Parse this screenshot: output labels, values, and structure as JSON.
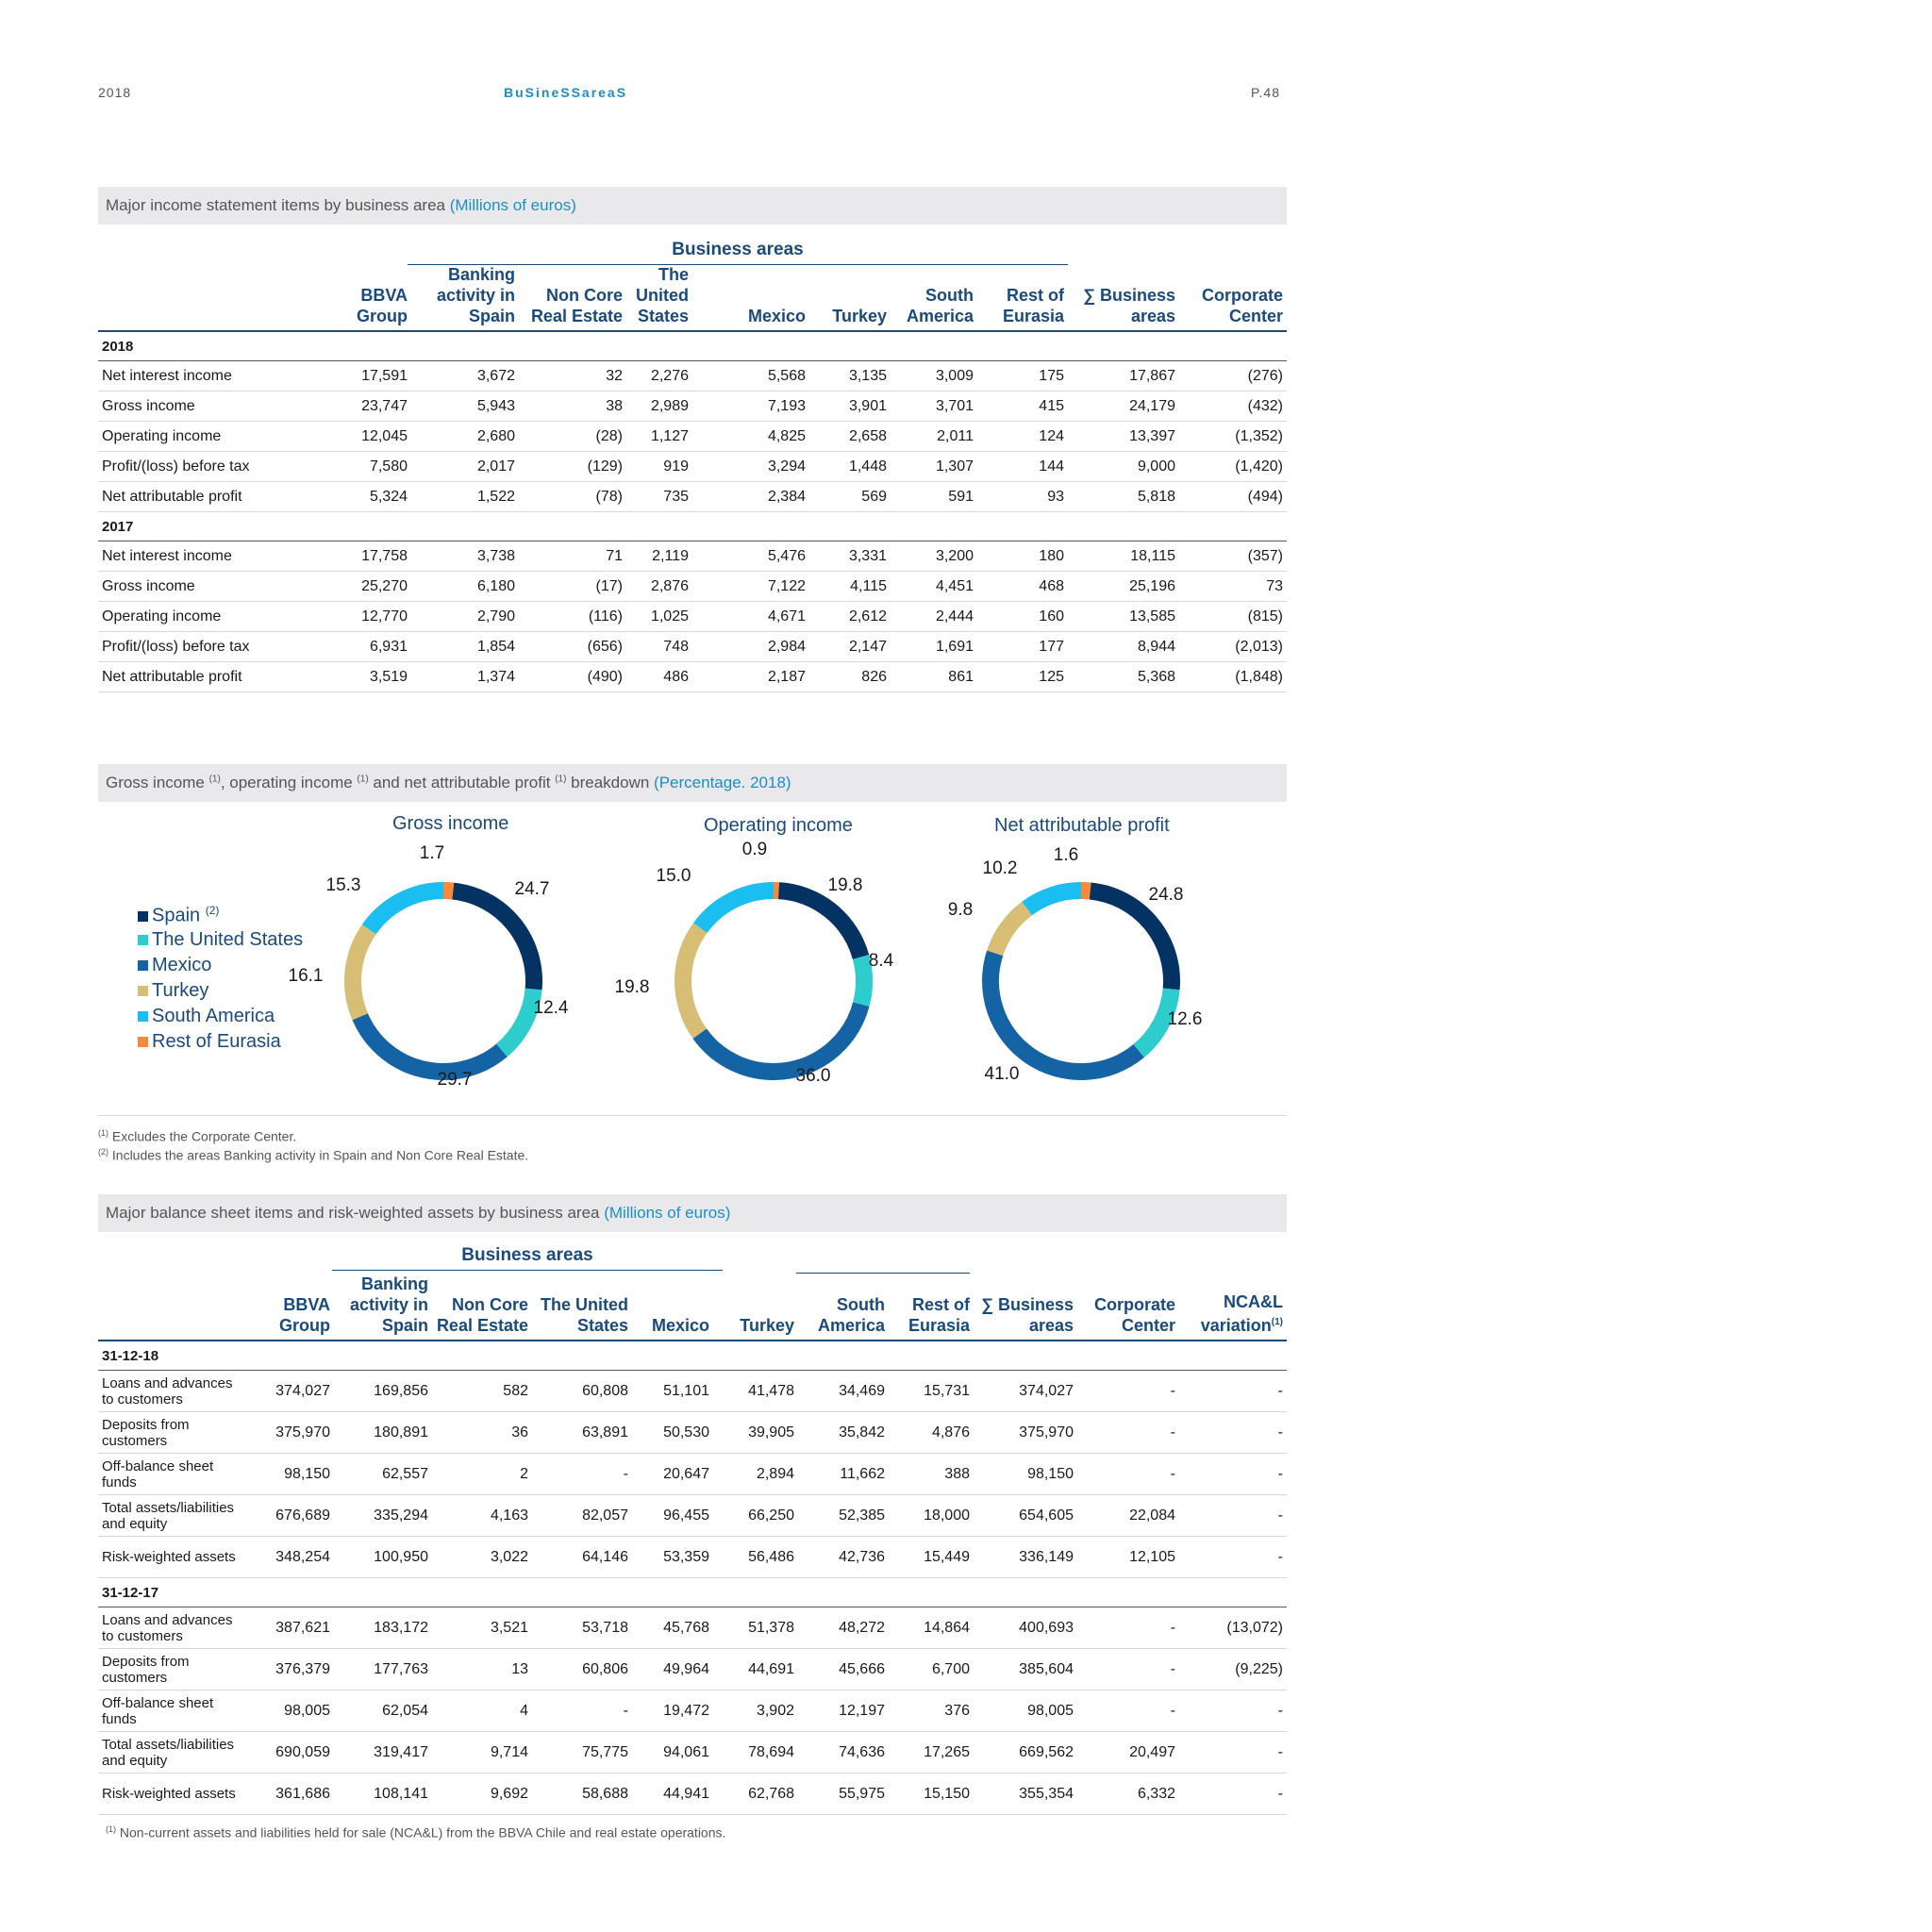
{
  "header": {
    "year": "2018",
    "section": "BuSineSSareaS",
    "page": "P.48"
  },
  "income": {
    "title": "Major income statement items by business area ",
    "unit": "(Millions of euros)",
    "group": "Business areas",
    "columns": [
      "BBVA Group",
      "Banking activity in Spain",
      "Non Core Real Estate",
      "The United States",
      "Mexico",
      "Turkey",
      "South America",
      "Rest of Eurasia",
      "∑ Business areas",
      "Corporate Center"
    ],
    "sections": [
      {
        "year": "2018",
        "rows": [
          {
            "label": "Net interest income",
            "values": [
              "17,591",
              "3,672",
              "32",
              "2,276",
              "5,568",
              "3,135",
              "3,009",
              "175",
              "17,867",
              "(276)"
            ]
          },
          {
            "label": "Gross income",
            "values": [
              "23,747",
              "5,943",
              "38",
              "2,989",
              "7,193",
              "3,901",
              "3,701",
              "415",
              "24,179",
              "(432)"
            ]
          },
          {
            "label": "Operating income",
            "values": [
              "12,045",
              "2,680",
              "(28)",
              "1,127",
              "4,825",
              "2,658",
              "2,011",
              "124",
              "13,397",
              "(1,352)"
            ]
          },
          {
            "label": "Profit/(loss) before tax",
            "values": [
              "7,580",
              "2,017",
              "(129)",
              "919",
              "3,294",
              "1,448",
              "1,307",
              "144",
              "9,000",
              "(1,420)"
            ]
          },
          {
            "label": "Net attributable profit",
            "values": [
              "5,324",
              "1,522",
              "(78)",
              "735",
              "2,384",
              "569",
              "591",
              "93",
              "5,818",
              "(494)"
            ]
          }
        ]
      },
      {
        "year": "2017",
        "rows": [
          {
            "label": "Net interest income",
            "values": [
              "17,758",
              "3,738",
              "71",
              "2,119",
              "5,476",
              "3,331",
              "3,200",
              "180",
              "18,115",
              "(357)"
            ]
          },
          {
            "label": "Gross income",
            "values": [
              "25,270",
              "6,180",
              "(17)",
              "2,876",
              "7,122",
              "4,115",
              "4,451",
              "468",
              "25,196",
              "73"
            ]
          },
          {
            "label": "Operating income",
            "values": [
              "12,770",
              "2,790",
              "(116)",
              "1,025",
              "4,671",
              "2,612",
              "2,444",
              "160",
              "13,585",
              "(815)"
            ]
          },
          {
            "label": "Profit/(loss) before tax",
            "values": [
              "6,931",
              "1,854",
              "(656)",
              "748",
              "2,984",
              "2,147",
              "1,691",
              "177",
              "8,944",
              "(2,013)"
            ]
          },
          {
            "label": "Net attributable profit",
            "values": [
              "3,519",
              "1,374",
              "(490)",
              "486",
              "2,187",
              "826",
              "861",
              "125",
              "5,368",
              "(1,848)"
            ]
          }
        ]
      }
    ]
  },
  "breakdown": {
    "title_parts": [
      "Gross income ",
      "(1)",
      ", operating income ",
      "(1)",
      " and net attributable profit ",
      "(1)",
      " breakdown "
    ],
    "unit": "(Percentage. 2018)",
    "legend": [
      {
        "label": "Spain ",
        "sup": "(2)",
        "color": "#043263"
      },
      {
        "label": "The United States",
        "color": "#2dcccd"
      },
      {
        "label": "Mexico",
        "color": "#1464a5"
      },
      {
        "label": "Turkey",
        "color": "#d8be75"
      },
      {
        "label": "South America",
        "color": "#1bbef0"
      },
      {
        "label": "Rest of Eurasia",
        "color": "#f7893b"
      }
    ],
    "notes": [
      {
        "sup": "(1)",
        "text": " Excludes the Corporate Center."
      },
      {
        "sup": "(2)",
        "text": " Includes the areas Banking activity in Spain and Non Core Real Estate."
      }
    ]
  },
  "chart_data": [
    {
      "type": "pie",
      "title": "Gross income",
      "categories": [
        "Spain",
        "The United States",
        "Mexico",
        "Turkey",
        "South America",
        "Rest of Eurasia"
      ],
      "values": [
        24.7,
        12.4,
        29.7,
        16.1,
        15.3,
        1.7
      ],
      "labels": [
        "24.7",
        "12.4",
        "29.7",
        "16.1",
        "15.3",
        "1.7"
      ]
    },
    {
      "type": "pie",
      "title": "Operating income",
      "categories": [
        "Spain",
        "The United States",
        "Mexico",
        "Turkey",
        "South America",
        "Rest of Eurasia"
      ],
      "values": [
        19.8,
        8.4,
        36.0,
        19.8,
        15.0,
        0.9
      ],
      "labels": [
        "19.8",
        "8.4",
        "36.0",
        "19.8",
        "15.0",
        "0.9"
      ]
    },
    {
      "type": "pie",
      "title": "Net attributable profit",
      "categories": [
        "Spain",
        "The United States",
        "Mexico",
        "Turkey",
        "South America",
        "Rest of Eurasia"
      ],
      "values": [
        24.8,
        12.6,
        41.0,
        9.8,
        10.2,
        1.6
      ],
      "labels": [
        "24.8",
        "12.6",
        "41.0",
        "9.8",
        "10.2",
        "1.6"
      ]
    }
  ],
  "balance": {
    "title": "Major balance sheet items and risk-weighted assets by business area ",
    "unit": "(Millions of euros)",
    "group": "Business areas",
    "columns": [
      "BBVA Group",
      "Banking activity in Spain",
      "Non Core Real Estate",
      "The United States",
      "Mexico",
      "Turkey",
      "South America",
      "Rest of Eurasia",
      "∑ Business areas",
      "Corporate Center",
      "NCA&L variation"
    ],
    "last_col_sup": "(1)",
    "sections": [
      {
        "year": "31-12-18",
        "rows": [
          {
            "label": "Loans and advances to customers",
            "values": [
              "374,027",
              "169,856",
              "582",
              "60,808",
              "51,101",
              "41,478",
              "34,469",
              "15,731",
              "374,027",
              "-",
              "-"
            ]
          },
          {
            "label": "Deposits from customers",
            "values": [
              "375,970",
              "180,891",
              "36",
              "63,891",
              "50,530",
              "39,905",
              "35,842",
              "4,876",
              "375,970",
              "-",
              "-"
            ]
          },
          {
            "label": "Off-balance sheet funds",
            "values": [
              "98,150",
              "62,557",
              "2",
              "-",
              "20,647",
              "2,894",
              "11,662",
              "388",
              "98,150",
              "-",
              "-"
            ]
          },
          {
            "label": "Total assets/liabilities and equity",
            "values": [
              "676,689",
              "335,294",
              "4,163",
              "82,057",
              "96,455",
              "66,250",
              "52,385",
              "18,000",
              "654,605",
              "22,084",
              "-"
            ]
          },
          {
            "label": "Risk-weighted assets",
            "values": [
              "348,254",
              "100,950",
              "3,022",
              "64,146",
              "53,359",
              "56,486",
              "42,736",
              "15,449",
              "336,149",
              "12,105",
              "-"
            ]
          }
        ]
      },
      {
        "year": "31-12-17",
        "rows": [
          {
            "label": "Loans and advances to customers",
            "values": [
              "387,621",
              "183,172",
              "3,521",
              "53,718",
              "45,768",
              "51,378",
              "48,272",
              "14,864",
              "400,693",
              "-",
              "(13,072)"
            ]
          },
          {
            "label": "Deposits from customers",
            "values": [
              "376,379",
              "177,763",
              "13",
              "60,806",
              "49,964",
              "44,691",
              "45,666",
              "6,700",
              "385,604",
              "-",
              "(9,225)"
            ]
          },
          {
            "label": "Off-balance sheet funds",
            "values": [
              "98,005",
              "62,054",
              "4",
              "-",
              "19,472",
              "3,902",
              "12,197",
              "376",
              "98,005",
              "-",
              "-"
            ]
          },
          {
            "label": "Total assets/liabilities and equity",
            "values": [
              "690,059",
              "319,417",
              "9,714",
              "75,775",
              "94,061",
              "78,694",
              "74,636",
              "17,265",
              "669,562",
              "20,497",
              "-"
            ]
          },
          {
            "label": "Risk-weighted assets",
            "values": [
              "361,686",
              "108,141",
              "9,692",
              "58,688",
              "44,941",
              "62,768",
              "55,975",
              "15,150",
              "355,354",
              "6,332",
              "-"
            ]
          }
        ]
      }
    ],
    "note": {
      "sup": "(1)",
      "text": " Non-current assets and liabilities held for sale (NCA&L) from the BBVA Chile and real estate operations."
    }
  }
}
